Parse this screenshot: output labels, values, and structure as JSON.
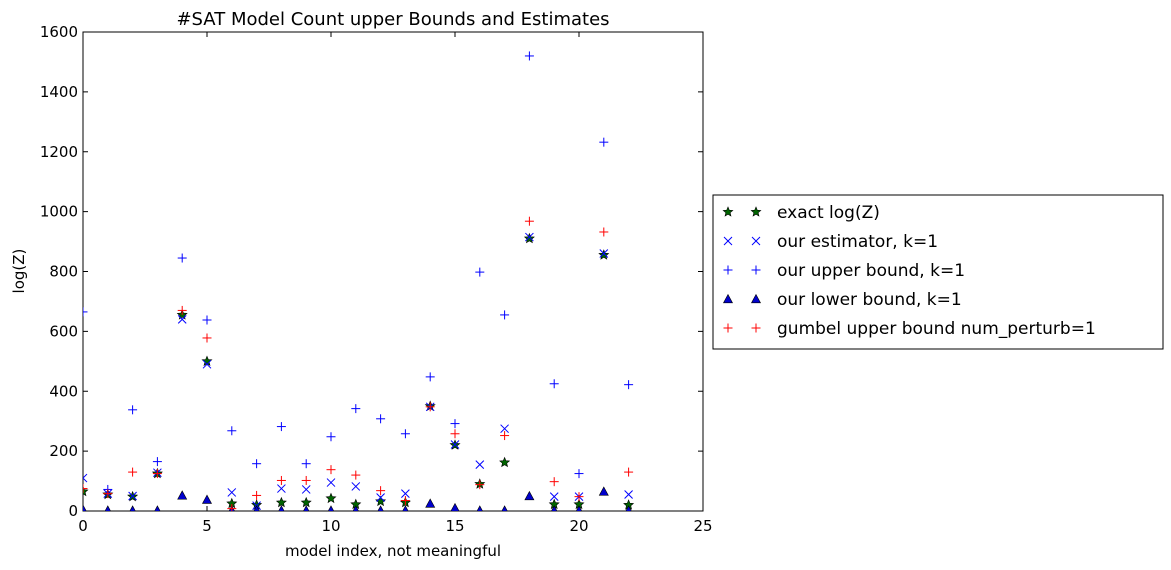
{
  "chart_data": {
    "type": "scatter",
    "title": "#SAT Model Count upper Bounds and Estimates",
    "xlabel": "model index, not meaningful",
    "ylabel": "log(Z)",
    "xlim": [
      0,
      25
    ],
    "ylim": [
      0,
      1600
    ],
    "xticks": [
      0,
      5,
      10,
      15,
      20,
      25
    ],
    "yticks": [
      0,
      200,
      400,
      600,
      800,
      1000,
      1200,
      1400,
      1600
    ],
    "grid": false,
    "legend_placement": "outside-right",
    "x": [
      0,
      1,
      2,
      3,
      4,
      5,
      6,
      7,
      8,
      9,
      10,
      11,
      12,
      13,
      14,
      15,
      16,
      17,
      18,
      19,
      20,
      21,
      22
    ],
    "series": [
      {
        "name": "exact log(Z)",
        "marker": "star",
        "color": "#006400",
        "values": [
          65,
          55,
          48,
          125,
          655,
          500,
          25,
          20,
          28,
          28,
          42,
          22,
          32,
          28,
          350,
          220,
          90,
          162,
          910,
          22,
          22,
          855,
          20
        ]
      },
      {
        "name": "our estimator, k=1",
        "marker": "x",
        "color": "#0000ff",
        "values": [
          110,
          58,
          50,
          128,
          640,
          490,
          62,
          18,
          75,
          72,
          95,
          82,
          45,
          58,
          348,
          222,
          155,
          275,
          915,
          48,
          48,
          860,
          55
        ]
      },
      {
        "name": "our upper bound, k=1",
        "marker": "plus",
        "color": "#0000ff",
        "values": [
          665,
          72,
          338,
          165,
          845,
          638,
          268,
          158,
          282,
          158,
          248,
          342,
          308,
          258,
          448,
          292,
          798,
          655,
          1520,
          425,
          125,
          1232,
          422
        ]
      },
      {
        "name": "our lower bound, k=1",
        "marker": "triangle",
        "color": "#0000cc",
        "values": [
          5,
          2,
          2,
          2,
          52,
          38,
          2,
          2,
          2,
          2,
          2,
          2,
          2,
          2,
          25,
          10,
          2,
          2,
          50,
          2,
          2,
          65,
          2
        ]
      },
      {
        "name": "gumbel upper bound num_perturb=1",
        "marker": "plus",
        "color": "#ff0000",
        "values": [
          75,
          58,
          130,
          125,
          670,
          578,
          8,
          52,
          102,
          102,
          138,
          120,
          68,
          35,
          348,
          258,
          88,
          252,
          968,
          98,
          48,
          932,
          130
        ]
      }
    ]
  }
}
